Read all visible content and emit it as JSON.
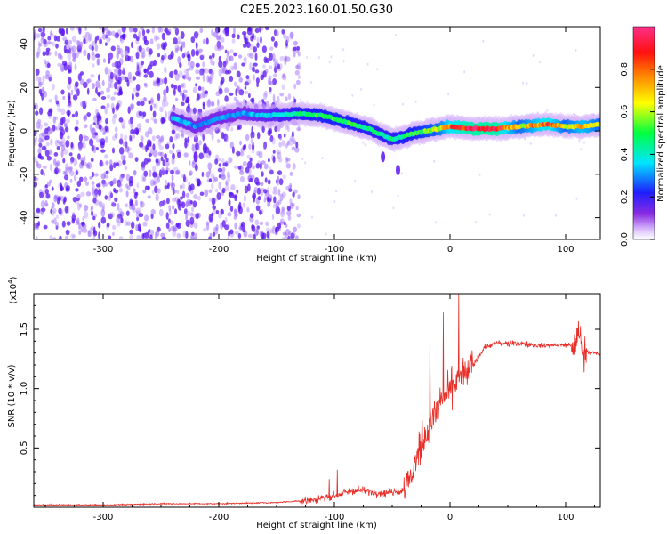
{
  "title": "C2E5.2023.160.01.50.G30",
  "colors": {
    "snr_line": "#e8302a",
    "weak_emission": "#9a66ff",
    "strong_emission": "#5a14f0"
  },
  "chart_data": [
    {
      "type": "heatmap",
      "xlabel": "Height of straight line (km)",
      "ylabel": "Frequency (Hz)",
      "xlim": [
        -360,
        130
      ],
      "ylim": [
        -50,
        48
      ],
      "x_ticks": [
        -300,
        -200,
        -100,
        0,
        100
      ],
      "y_ticks": [
        -40,
        -20,
        0,
        20,
        40
      ],
      "colorbar": {
        "label": "Normalized spectral amplitude",
        "range": [
          0,
          1
        ],
        "ticks": [
          "0.0",
          "0.2",
          "0.4",
          "0.6",
          "0.8"
        ],
        "colormap": "rainbow (violet→blue→cyan→green→yellow→red→magenta)"
      },
      "features": {
        "scatter_region_x": [
          -360,
          -130
        ],
        "trace": [
          {
            "x": -240,
            "y": 6,
            "amp": 0.35
          },
          {
            "x": -220,
            "y": 2,
            "amp": 0.3
          },
          {
            "x": -200,
            "y": 6,
            "amp": 0.3
          },
          {
            "x": -180,
            "y": 8,
            "amp": 0.3
          },
          {
            "x": -160,
            "y": 7,
            "amp": 0.35
          },
          {
            "x": -130,
            "y": 8,
            "amp": 0.45
          },
          {
            "x": -110,
            "y": 7,
            "amp": 0.5
          },
          {
            "x": -90,
            "y": 4,
            "amp": 0.5
          },
          {
            "x": -70,
            "y": 1,
            "amp": 0.45
          },
          {
            "x": -50,
            "y": -4,
            "amp": 0.45
          },
          {
            "x": -30,
            "y": -1,
            "amp": 0.5
          },
          {
            "x": -10,
            "y": 1,
            "amp": 0.6
          },
          {
            "x": 0,
            "y": 2,
            "amp": 0.8
          },
          {
            "x": 20,
            "y": 1,
            "amp": 0.95
          },
          {
            "x": 40,
            "y": 1,
            "amp": 0.95
          },
          {
            "x": 60,
            "y": 2,
            "amp": 0.6
          },
          {
            "x": 85,
            "y": 3,
            "amp": 0.85
          },
          {
            "x": 100,
            "y": 2,
            "amp": 0.6
          },
          {
            "x": 115,
            "y": 2,
            "amp": 0.75
          },
          {
            "x": 130,
            "y": 3,
            "amp": 0.6
          }
        ]
      }
    },
    {
      "type": "line",
      "xlabel": "Height of straight line (km)",
      "ylabel": "SNR (10 * v/v)",
      "y_multiplier": "(x10",
      "y_multiplier_exp": "4",
      "multiplier_close": ")",
      "xlim": [
        -360,
        130
      ],
      "ylim": [
        0,
        1.8
      ],
      "x_ticks": [
        -300,
        -200,
        -100,
        0,
        100
      ],
      "y_ticks": [
        0.5,
        1.0,
        1.5
      ],
      "y_tick_labels": [
        "0.5",
        "1.0",
        "1.5"
      ],
      "series": [
        {
          "x": [
            -360,
            -300,
            -250,
            -200,
            -150,
            -120,
            -100,
            -80,
            -60,
            -40,
            -30,
            -25,
            -20,
            -15,
            -10,
            -5,
            0,
            5,
            10,
            20,
            30,
            40,
            60,
            80,
            100,
            108,
            112,
            115,
            120,
            130
          ],
          "y": [
            0.02,
            0.02,
            0.03,
            0.03,
            0.04,
            0.06,
            0.1,
            0.15,
            0.12,
            0.14,
            0.35,
            0.55,
            0.65,
            0.75,
            0.85,
            0.9,
            1.0,
            1.05,
            1.1,
            1.2,
            1.35,
            1.38,
            1.38,
            1.36,
            1.37,
            1.36,
            1.45,
            1.33,
            1.31,
            1.29
          ]
        }
      ]
    }
  ]
}
